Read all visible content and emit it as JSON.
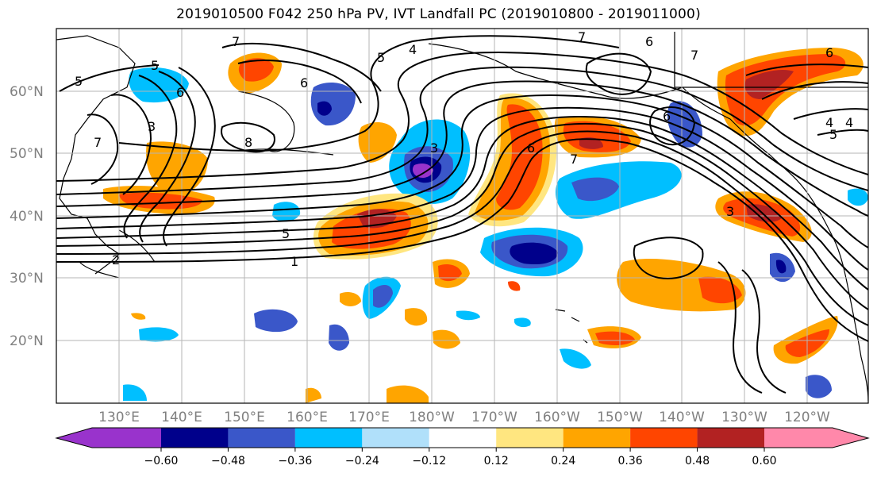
{
  "title": "2019010500 F042 250 hPa PV, IVT Landfall PC (2019010800 - 2019011000)",
  "lat_labels": [
    "60°N",
    "50°N",
    "40°N",
    "30°N",
    "20°N"
  ],
  "lon_labels": [
    "130°E",
    "140°E",
    "150°E",
    "160°E",
    "170°E",
    "180°W",
    "170°W",
    "160°W",
    "150°W",
    "140°W",
    "130°W",
    "120°W"
  ],
  "colorbar": {
    "bounds": [
      "−0.60",
      "−0.48",
      "−0.36",
      "−0.24",
      "−0.12",
      "0.12",
      "0.24",
      "0.36",
      "0.48",
      "0.60"
    ],
    "colors": [
      "#9933cc",
      "#00008b",
      "#3a57c9",
      "#00bfff",
      "#b0e0fa",
      "#ffffff",
      "#ffe680",
      "#ffa500",
      "#ff4500",
      "#b22222",
      "#ff88aa"
    ]
  },
  "contour_labels": [
    "7",
    "7",
    "6",
    "5",
    "4",
    "5",
    "6",
    "3",
    "6",
    "7",
    "8",
    "7",
    "5",
    "4",
    "6",
    "6",
    "4",
    "5",
    "5",
    "1",
    "2",
    "3",
    "7",
    "6",
    "3"
  ],
  "features": {
    "shading": "250 hPa PV anomaly (filled)",
    "contours": "IVT Landfall PC (black lines)"
  }
}
